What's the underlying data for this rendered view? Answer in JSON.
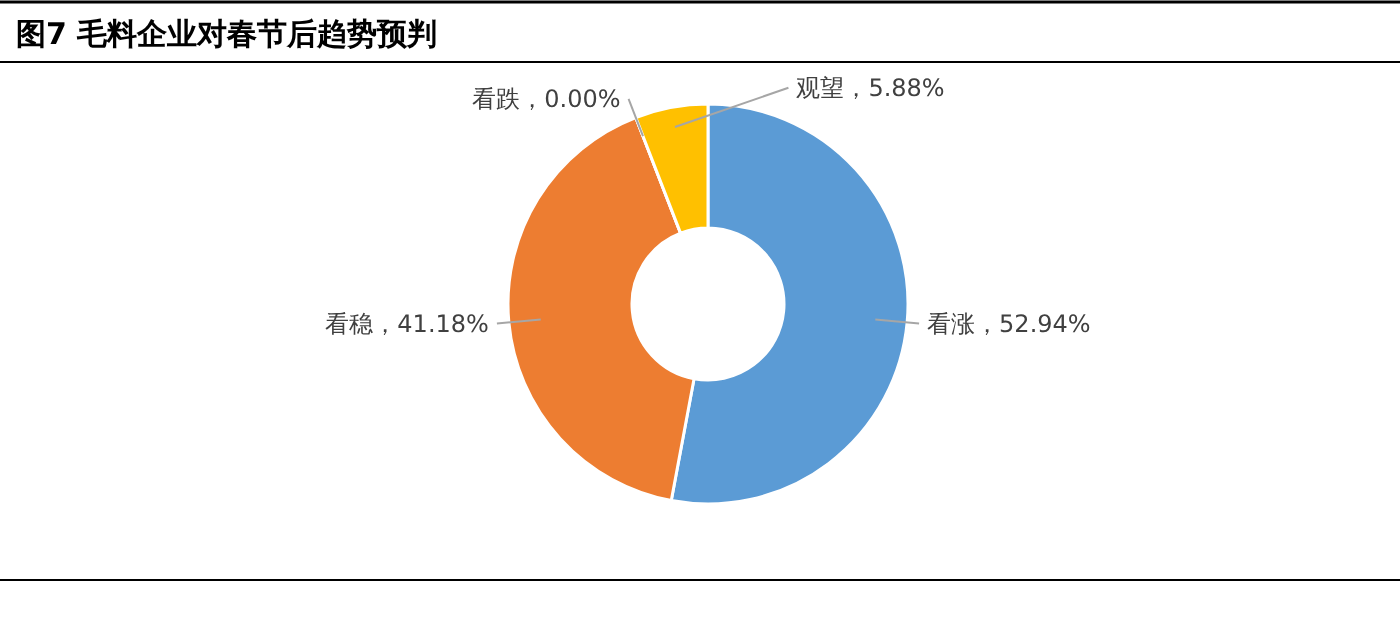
{
  "chart_data": {
    "type": "donut",
    "title": "图7 毛料企业对春节后趋势预判",
    "categories": [
      "看涨",
      "看稳",
      "看跌",
      "观望"
    ],
    "values": [
      52.94,
      41.18,
      0.0,
      5.88
    ],
    "colors": [
      "#5b9bd5",
      "#ed7d31",
      "#a5a5a5",
      "#ffc000"
    ],
    "value_labels": [
      "，52.94%",
      "，41.18%",
      "，0.00%",
      "，5.88%"
    ],
    "legend": false
  }
}
